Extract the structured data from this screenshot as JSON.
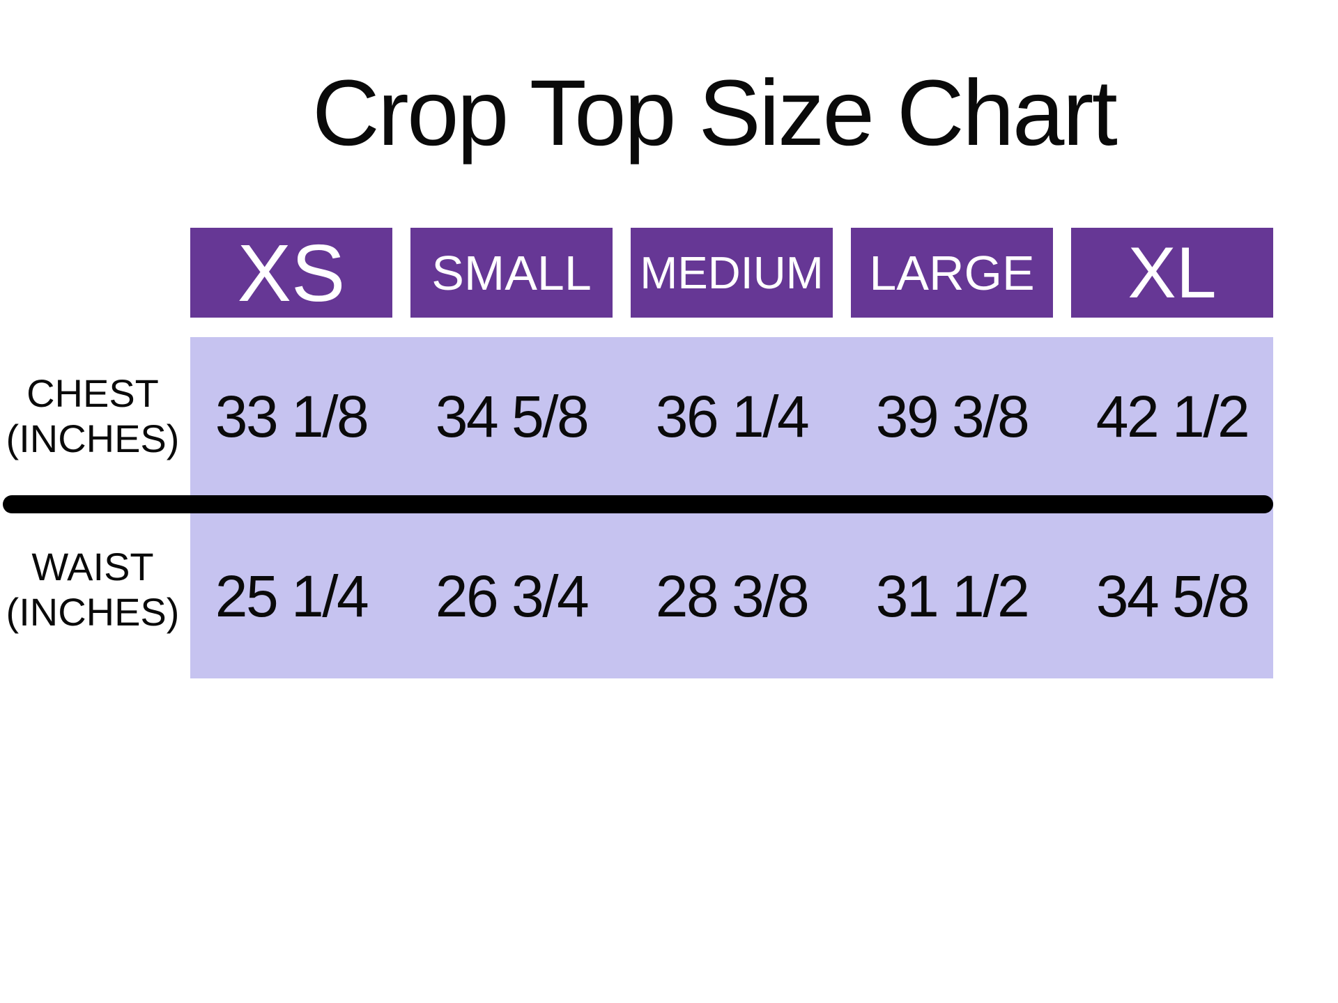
{
  "page": {
    "title": "Crop Top Size Chart"
  },
  "colors": {
    "header_bg": "#663795",
    "band_bg": "#C6C3F0",
    "divider": "#000000",
    "header_text": "#FFFFFF",
    "text": "#0A0A0A",
    "background": "#FFFFFF"
  },
  "table": {
    "columns": [
      "XS",
      "SMALL",
      "MEDIUM",
      "LARGE",
      "XL"
    ],
    "rows": [
      {
        "label": [
          "CHEST",
          "(INCHES)"
        ],
        "values": [
          "33 1/8",
          "34 5/8",
          "36 1/4",
          "39 3/8",
          "42 1/2"
        ]
      },
      {
        "label": [
          "WAIST",
          "(INCHES)"
        ],
        "values": [
          "25 1/4",
          "26 3/4",
          "28 3/8",
          "31 1/2",
          "34 5/8"
        ]
      }
    ]
  },
  "chart_data": {
    "type": "table",
    "title": "Crop Top Size Chart",
    "units": "inches",
    "columns": [
      "XS",
      "SMALL",
      "MEDIUM",
      "LARGE",
      "XL"
    ],
    "rows": [
      {
        "label": "CHEST (INCHES)",
        "values_display": [
          "33 1/8",
          "34 5/8",
          "36 1/4",
          "39 3/8",
          "42 1/2"
        ],
        "values_numeric": [
          33.125,
          34.625,
          36.25,
          39.375,
          42.5
        ]
      },
      {
        "label": "WAIST (INCHES)",
        "values_display": [
          "25 1/4",
          "26 3/4",
          "28 3/8",
          "31 1/2",
          "34 5/8"
        ],
        "values_numeric": [
          25.25,
          26.75,
          28.375,
          31.5,
          34.625
        ]
      }
    ],
    "layout": {
      "header_style": "purple boxes, white text",
      "body_style": "lavender band, black text",
      "divider": "thick black rounded horizontal rule between rows"
    }
  }
}
